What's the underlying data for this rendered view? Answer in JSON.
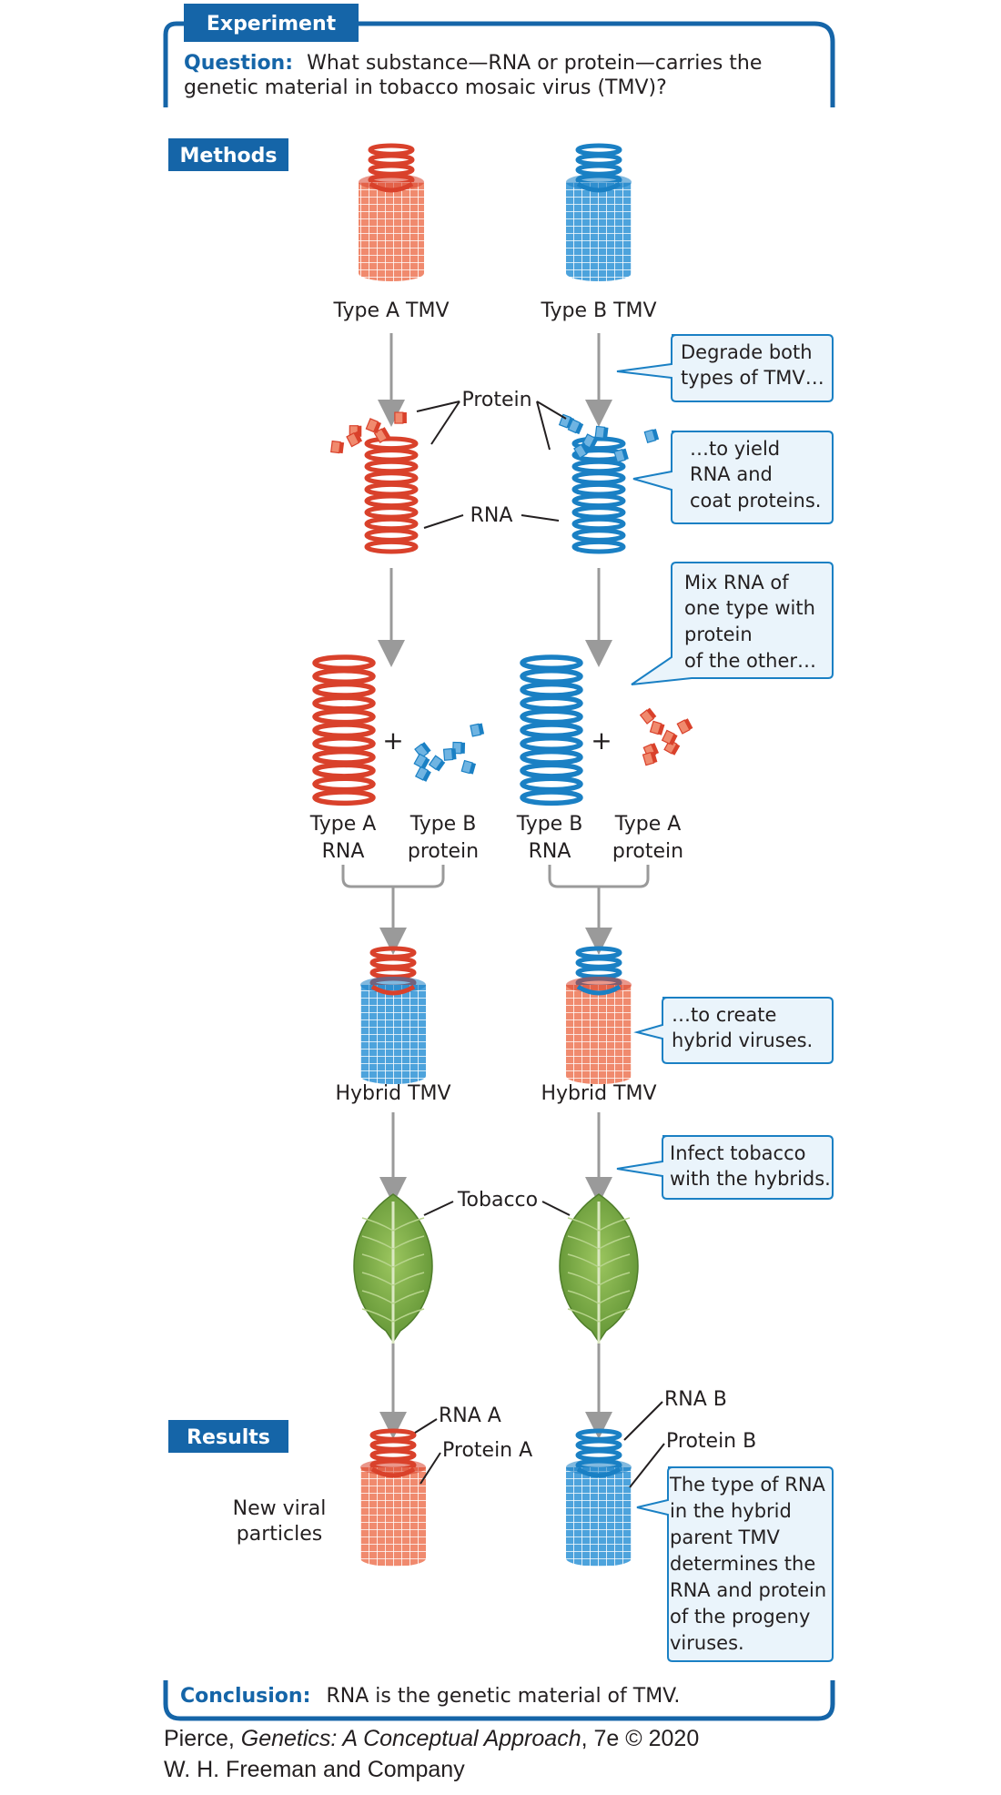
{
  "experiment": {
    "label": "Experiment",
    "question_label": "Question:",
    "question_line1": "What substance—RNA or protein—carries the",
    "question_line2": "genetic material in tobacco mosaic virus (TMV)?"
  },
  "sections": {
    "methods": "Methods",
    "results": "Results"
  },
  "labels": {
    "type_a_tmv": "Type A TMV",
    "type_b_tmv": "Type B TMV",
    "protein": "Protein",
    "rna": "RNA",
    "plus": "+",
    "type_a": "Type A",
    "type_b": "Type B",
    "rna_word": "RNA",
    "protein_word": "protein",
    "hybrid_tmv": "Hybrid TMV",
    "tobacco": "Tobacco",
    "rna_a": "RNA A",
    "protein_a": "Protein A",
    "rna_b": "RNA B",
    "protein_b": "Protein B",
    "new_viral_1": "New viral",
    "new_viral_2": "particles"
  },
  "callouts": {
    "degrade": [
      "Degrade both",
      "types of TMV…"
    ],
    "yield": [
      "…to yield",
      "RNA and",
      "coat proteins."
    ],
    "mix": [
      "Mix RNA of",
      "one type with",
      "protein",
      "of the other…"
    ],
    "create": [
      "…to create",
      "hybrid viruses."
    ],
    "infect": [
      "Infect tobacco",
      "with the hybrids."
    ],
    "result": [
      "The type of RNA",
      "in the hybrid",
      "parent TMV",
      "determines the",
      "RNA and protein",
      "of the progeny",
      "viruses."
    ]
  },
  "conclusion": {
    "label": "Conclusion:",
    "text": "RNA is the genetic material of TMV."
  },
  "credit": {
    "line1_author": "Pierce, ",
    "line1_title": "Genetics: A Conceptual Approach",
    "line1_rest": ", 7e © 2020",
    "line2": "W. H. Freeman and Company"
  },
  "colors": {
    "type_a_red": "#d9412b",
    "type_a_light": "#f08a6e",
    "type_b_blue": "#1a80c4",
    "type_b_light": "#6fb4e2",
    "header_blue": "#1565a8",
    "callout_fill": "#eaf4fb",
    "arrow_gray": "#9a9a9a",
    "leaf_green": "#7fae4a"
  }
}
